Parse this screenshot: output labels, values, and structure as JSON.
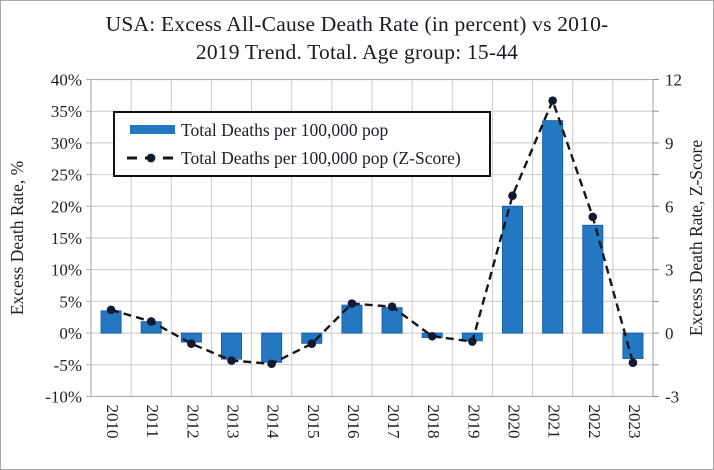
{
  "figure": {
    "title_line1": "USA: Excess All-Cause Death Rate (in percent) vs 2010-",
    "title_line2": "2019 Trend. Total. Age group: 15-44"
  },
  "chart_data": {
    "type": "bar",
    "title": "USA: Excess All-Cause Death Rate (in percent) vs 2010-2019 Trend. Total. Age group: 15-44",
    "categories": [
      "2010",
      "2011",
      "2012",
      "2013",
      "2014",
      "2015",
      "2016",
      "2017",
      "2018",
      "2019",
      "2020",
      "2021",
      "2022",
      "2023"
    ],
    "series": [
      {
        "name": "Total Deaths per 100,000 pop",
        "type": "bar",
        "axis": "left",
        "unit": "percent",
        "values": [
          3.5,
          1.8,
          -1.4,
          -4.1,
          -4.6,
          -1.6,
          4.4,
          4.0,
          -0.7,
          -1.2,
          20.0,
          33.5,
          17.0,
          -4.0
        ]
      },
      {
        "name": "Total Deaths per 100,000 pop (Z-Score)",
        "type": "dashed-line-with-dots",
        "axis": "right",
        "values": [
          1.1,
          0.55,
          -0.5,
          -1.3,
          -1.45,
          -0.5,
          1.4,
          1.25,
          -0.15,
          -0.4,
          6.5,
          11.0,
          5.5,
          -1.4
        ]
      }
    ],
    "left_axis": {
      "label": "Excess Death Rate, %",
      "min": -10,
      "max": 40,
      "step": 5,
      "tick_labels": [
        "40%",
        "35%",
        "30%",
        "25%",
        "20%",
        "15%",
        "10%",
        "5%",
        "0%",
        "-5%",
        "-10%"
      ],
      "tick_values": [
        40,
        35,
        30,
        25,
        20,
        15,
        10,
        5,
        0,
        -5,
        -10
      ]
    },
    "right_axis": {
      "label": "Excess Death Rate, Z-Score",
      "min": -3,
      "max": 12,
      "step": 3,
      "tick_labels": [
        "12",
        "9",
        "6",
        "3",
        "0",
        "-3"
      ],
      "tick_values": [
        12,
        9,
        6,
        3,
        0,
        -3
      ],
      "minor_tick_step": 1.5
    },
    "grid": true,
    "legend_position": "top-left-inside",
    "colors": {
      "bar": "#2478c2",
      "bar_edge": "#1c5fa8",
      "dot": "#101a33",
      "line": "#161616",
      "grid": "#cbcbcb",
      "frame": "#b0b0b0",
      "text": "#20202a"
    }
  }
}
